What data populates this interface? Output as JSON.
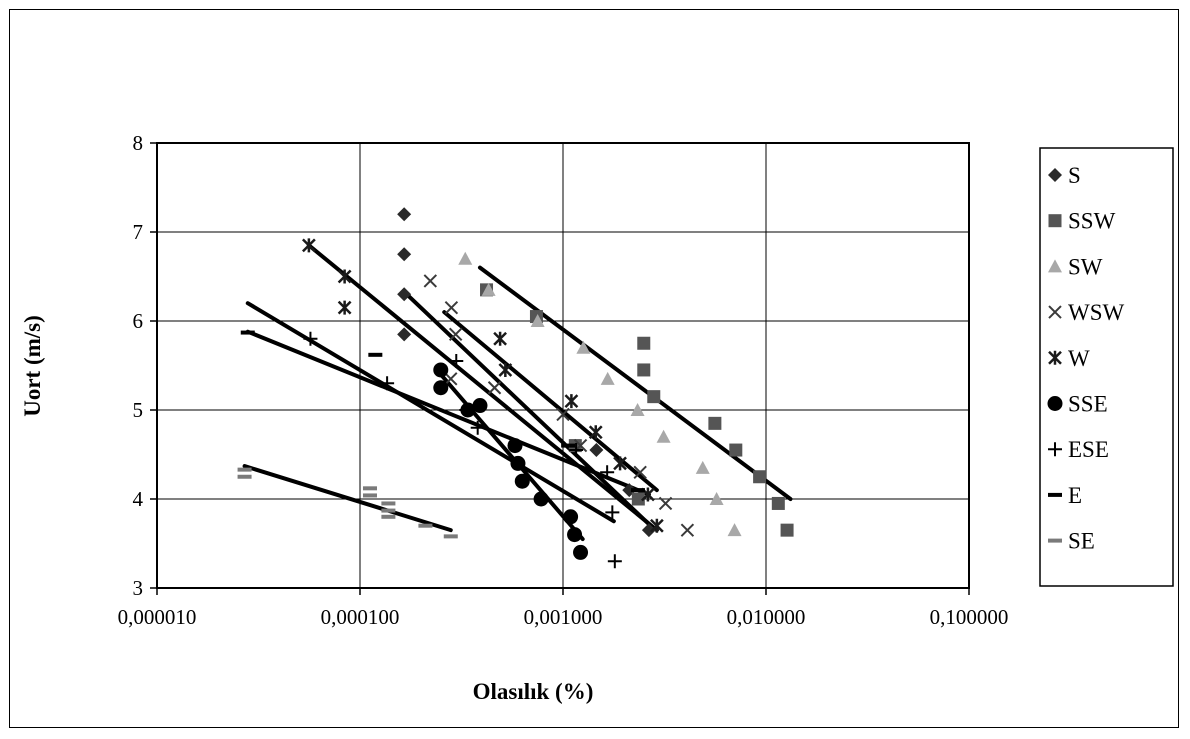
{
  "chart_data": {
    "type": "scatter",
    "title": "",
    "xlabel": "Olasılık (%)",
    "ylabel": "Uort (m/s)",
    "x_scale": "log",
    "xlim": [
      1e-05,
      0.1
    ],
    "ylim": [
      3,
      8
    ],
    "x_ticks": [
      1e-05,
      0.0001,
      0.001,
      0.01,
      0.1
    ],
    "x_tick_labels": [
      "0,000010",
      "0,000100",
      "0,001000",
      "0,010000",
      "0,100000"
    ],
    "y_ticks": [
      3,
      4,
      5,
      6,
      7,
      8
    ],
    "y_tick_labels": [
      "3",
      "4",
      "5",
      "6",
      "7",
      "8"
    ],
    "grid": true,
    "legend_position": "right",
    "series": [
      {
        "name": "S",
        "marker": "diamond",
        "color": "#2a2a2a",
        "points": [
          [
            0.000165,
            7.2
          ],
          [
            0.000165,
            6.75
          ],
          [
            0.000165,
            6.3
          ],
          [
            0.000165,
            5.85
          ],
          [
            0.00146,
            4.55
          ],
          [
            0.00212,
            4.1
          ],
          [
            0.00265,
            3.65
          ]
        ],
        "trend": [
          [
            0.00017,
            6.3
          ],
          [
            0.0027,
            3.7
          ]
        ]
      },
      {
        "name": "SSW",
        "marker": "square",
        "color": "#555555",
        "points": [
          [
            0.00042,
            6.35
          ],
          [
            0.00074,
            6.05
          ],
          [
            0.0025,
            5.75
          ],
          [
            0.0025,
            5.45
          ],
          [
            0.0028,
            5.15
          ],
          [
            0.0056,
            4.85
          ],
          [
            0.0071,
            4.55
          ],
          [
            0.0093,
            4.25
          ],
          [
            0.0115,
            3.95
          ],
          [
            0.0127,
            3.65
          ],
          [
            0.00115,
            4.6
          ],
          [
            0.00235,
            4.0
          ]
        ],
        "trend": [
          [
            0.00039,
            6.6
          ],
          [
            0.0132,
            4.0
          ]
        ]
      },
      {
        "name": "SW",
        "marker": "triangle",
        "color": "#a8a8a8",
        "points": [
          [
            0.00033,
            6.7
          ],
          [
            0.00043,
            6.35
          ],
          [
            0.00075,
            6.0
          ],
          [
            0.00126,
            5.7
          ],
          [
            0.00166,
            5.35
          ],
          [
            0.00233,
            5.0
          ],
          [
            0.00313,
            4.7
          ],
          [
            0.00488,
            4.35
          ],
          [
            0.00571,
            4.0
          ],
          [
            0.007,
            3.65
          ]
        ],
        "trend": []
      },
      {
        "name": "WSW",
        "marker": "x",
        "color": "#3a3a3a",
        "points": [
          [
            0.000222,
            6.45
          ],
          [
            0.000282,
            6.15
          ],
          [
            0.000296,
            5.85
          ],
          [
            0.00046,
            5.25
          ],
          [
            0.001,
            4.95
          ],
          [
            0.00122,
            4.6
          ],
          [
            0.0024,
            4.3
          ],
          [
            0.0032,
            3.95
          ],
          [
            0.0041,
            3.65
          ],
          [
            0.00028,
            5.35
          ]
        ],
        "trend": [
          [
            0.00026,
            6.1
          ],
          [
            0.0029,
            4.1
          ]
        ]
      },
      {
        "name": "W",
        "marker": "asterisk",
        "color": "#1a1a1a",
        "points": [
          [
            5.6e-05,
            6.85
          ],
          [
            8.4e-05,
            6.5
          ],
          [
            8.4e-05,
            6.15
          ],
          [
            0.00049,
            5.8
          ],
          [
            0.00052,
            5.45
          ],
          [
            0.0011,
            5.1
          ],
          [
            0.00145,
            4.75
          ],
          [
            0.00191,
            4.4
          ],
          [
            0.00262,
            4.05
          ],
          [
            0.0029,
            3.7
          ]
        ],
        "trend": [
          [
            5.6e-05,
            6.85
          ],
          [
            0.0029,
            3.65
          ]
        ]
      },
      {
        "name": "SSE",
        "marker": "circle",
        "color": "#000000",
        "points": [
          [
            0.00025,
            5.45
          ],
          [
            0.00025,
            5.25
          ],
          [
            0.00034,
            5.0
          ],
          [
            0.00039,
            5.05
          ],
          [
            0.00058,
            4.6
          ],
          [
            0.0006,
            4.4
          ],
          [
            0.00063,
            4.2
          ],
          [
            0.00078,
            4.0
          ],
          [
            0.00109,
            3.8
          ],
          [
            0.00114,
            3.6
          ],
          [
            0.00122,
            3.4
          ]
        ],
        "trend": [
          [
            0.00025,
            5.4
          ],
          [
            0.00125,
            3.55
          ]
        ]
      },
      {
        "name": "ESE",
        "marker": "plus",
        "color": "#000000",
        "points": [
          [
            5.7e-05,
            5.8
          ],
          [
            0.000136,
            5.3
          ],
          [
            0.000298,
            5.55
          ],
          [
            0.000334,
            5.0
          ],
          [
            0.00038,
            4.8
          ],
          [
            0.00116,
            4.55
          ],
          [
            0.00165,
            4.3
          ],
          [
            0.00175,
            3.85
          ],
          [
            0.0018,
            3.3
          ]
        ],
        "trend": [
          [
            2.8e-05,
            6.2
          ],
          [
            0.00178,
            3.75
          ]
        ]
      },
      {
        "name": "E",
        "marker": "dash",
        "color": "#000000",
        "points": [
          [
            2.8e-05,
            5.87
          ],
          [
            0.000119,
            5.62
          ],
          [
            0.00106,
            4.6
          ],
          [
            0.00234,
            4.1
          ]
        ],
        "trend": [
          [
            2.8e-05,
            5.88
          ],
          [
            0.00265,
            4.05
          ]
        ]
      },
      {
        "name": "SE",
        "marker": "dash",
        "color": "#7a7a7a",
        "points": [
          [
            2.7e-05,
            4.33
          ],
          [
            2.7e-05,
            4.25
          ],
          [
            0.000112,
            4.12
          ],
          [
            0.000112,
            4.04
          ],
          [
            0.000138,
            3.95
          ],
          [
            0.000138,
            3.87
          ],
          [
            0.000138,
            3.8
          ],
          [
            0.00021,
            3.7
          ],
          [
            0.00028,
            3.58
          ]
        ],
        "trend": [
          [
            2.7e-05,
            4.37
          ],
          [
            0.00028,
            3.65
          ]
        ]
      }
    ]
  }
}
